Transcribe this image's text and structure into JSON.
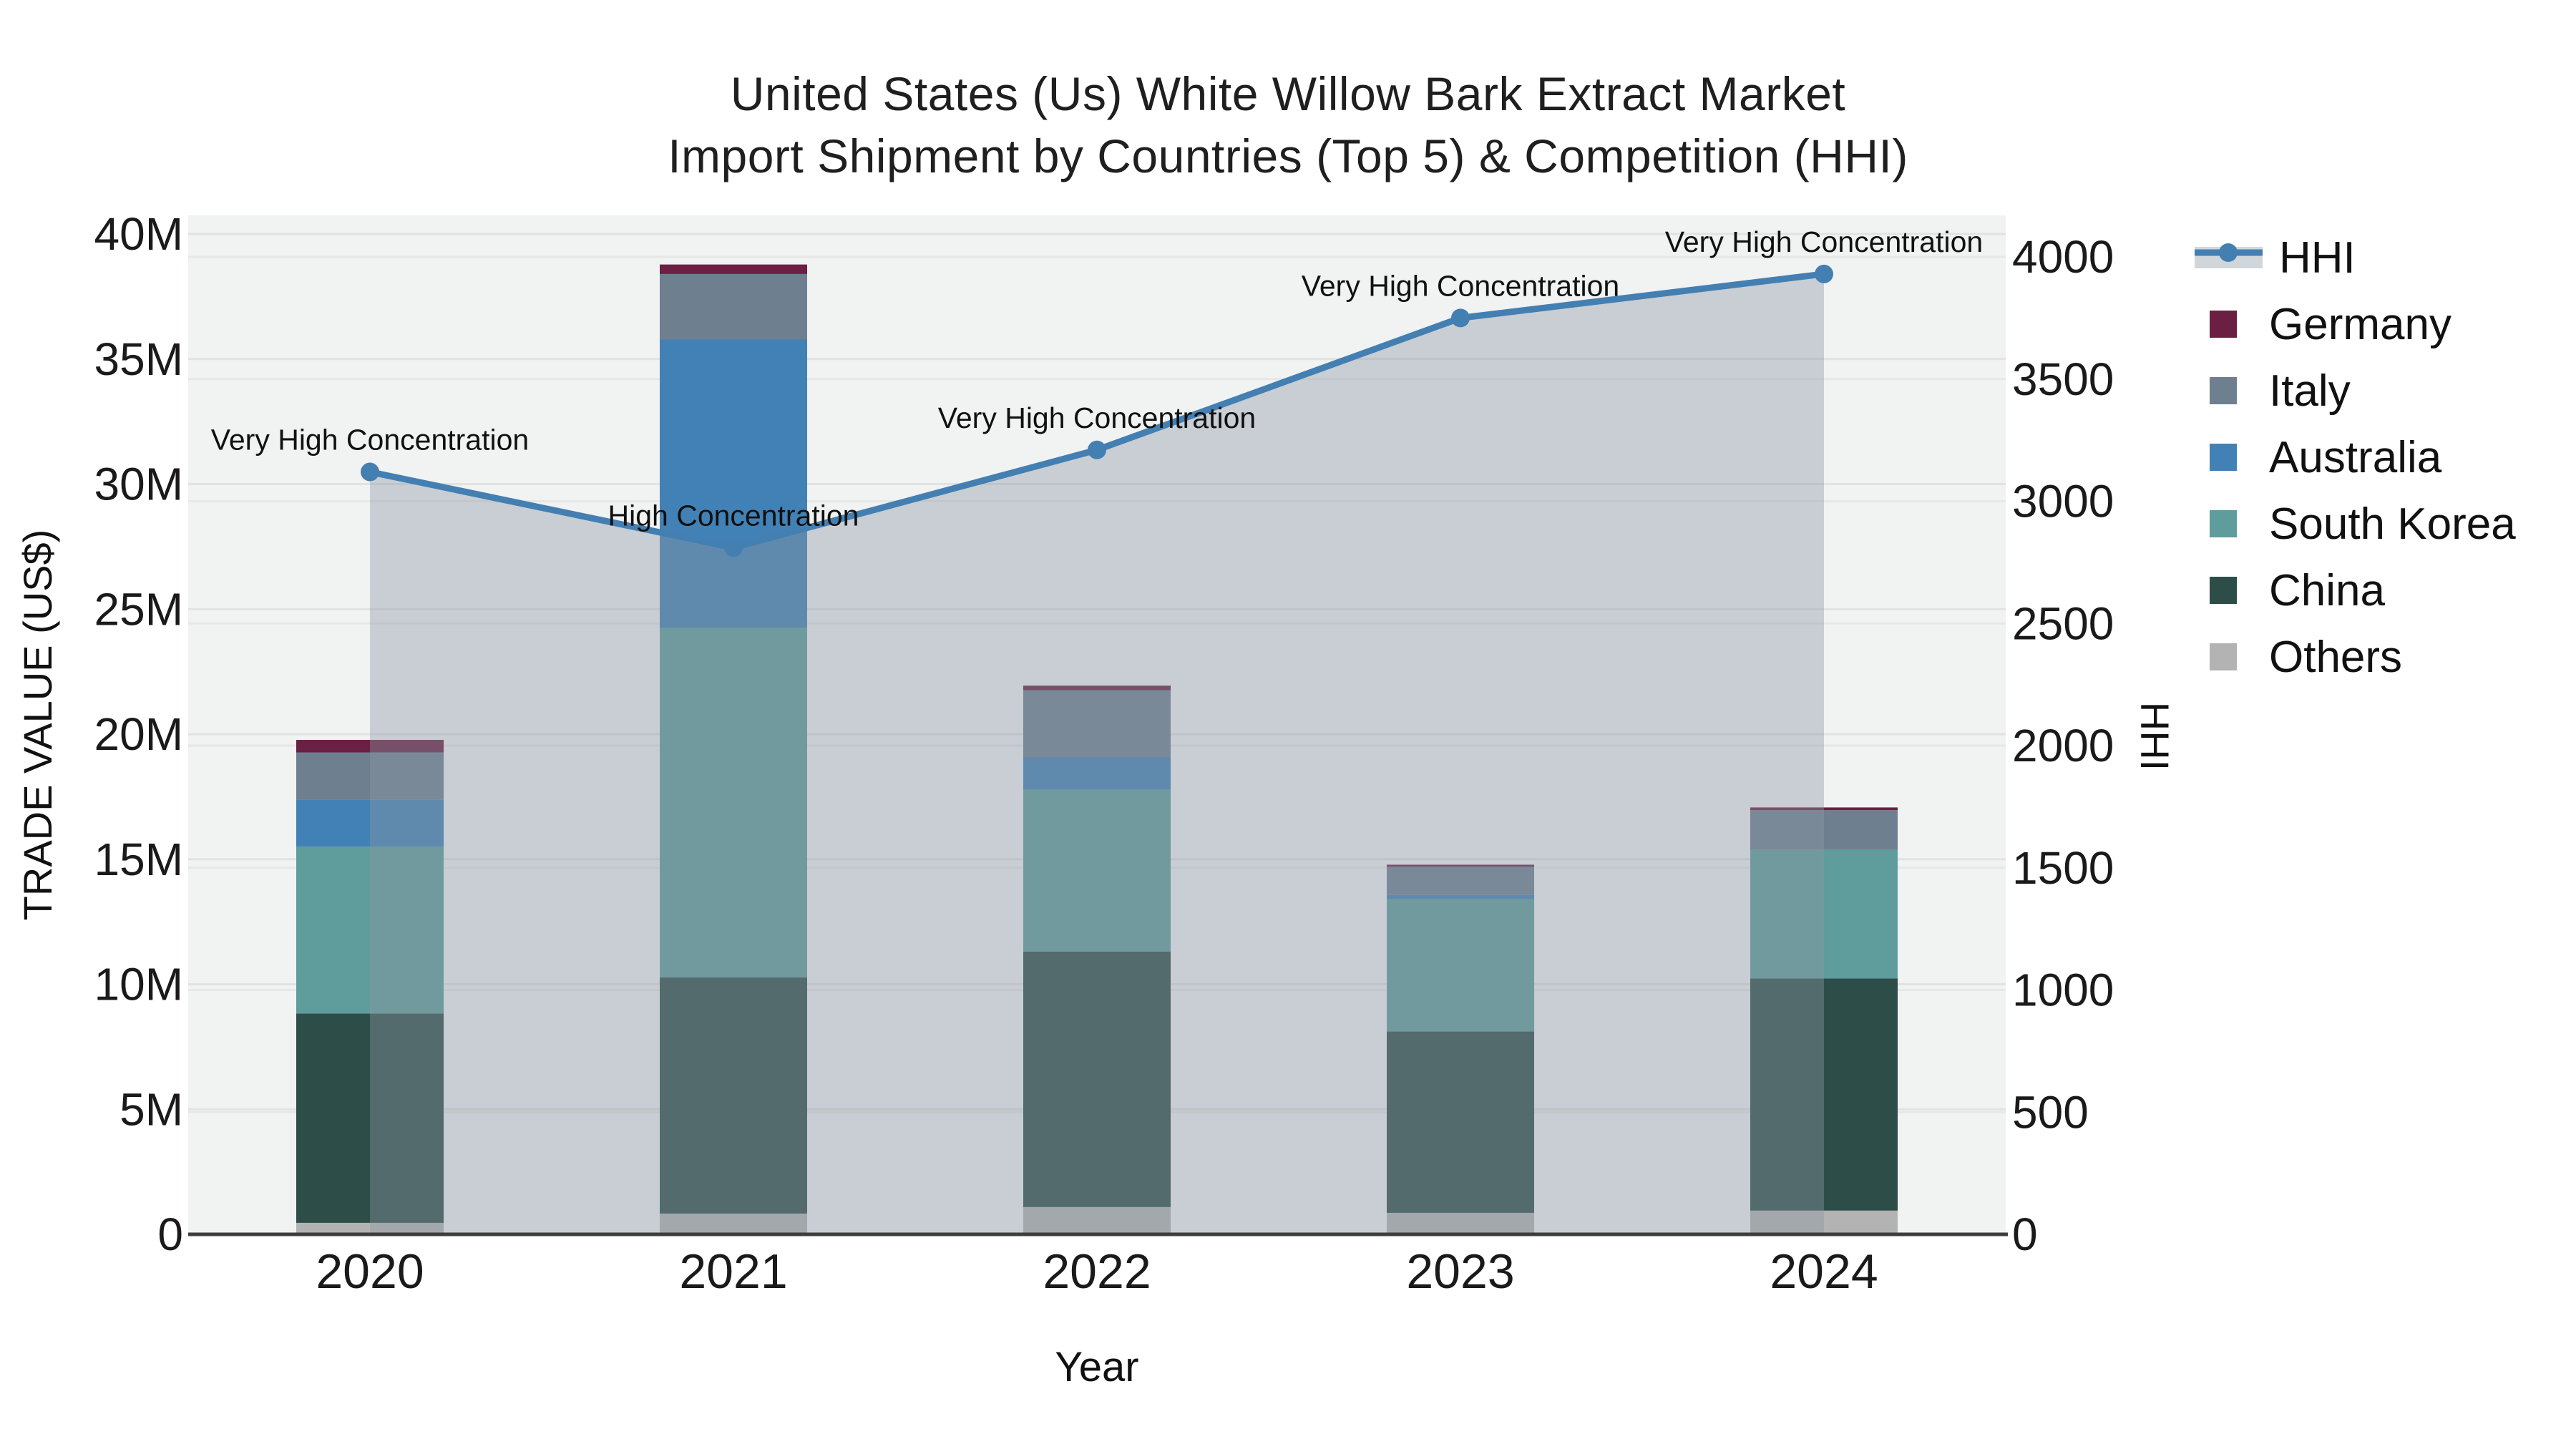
{
  "title": {
    "line1": "United States (Us) White Willow Bark Extract Market",
    "line2": "Import Shipment by Countries (Top 5) & Competition (HHI)"
  },
  "chart_data": {
    "type": "bar+line",
    "title": "United States (Us) White Willow Bark Extract Market",
    "subtitle": "Import Shipment by Countries (Top 5) & Competition (HHI)",
    "xlabel": "Year",
    "ylabel_left": "TRADE VALUE (US$)",
    "ylabel_right": "HHI",
    "categories": [
      "2020",
      "2021",
      "2022",
      "2023",
      "2024"
    ],
    "value_unit": "million US$",
    "ylim_left_millions": [
      0,
      40
    ],
    "ylim_right": [
      0,
      4000
    ],
    "y_left_ticks": [
      "0",
      "5M",
      "10M",
      "15M",
      "20M",
      "25M",
      "30M",
      "35M",
      "40M"
    ],
    "y_left_tick_values_millions": [
      0,
      5,
      10,
      15,
      20,
      25,
      30,
      35,
      40
    ],
    "y_right_ticks": [
      "0",
      "500",
      "1000",
      "1500",
      "2000",
      "2500",
      "3000",
      "3500",
      "4000"
    ],
    "y_right_tick_values": [
      0,
      500,
      1000,
      1500,
      2000,
      2500,
      3000,
      3500,
      4000
    ],
    "series": [
      {
        "name": "Others",
        "color": "#b3b3b3",
        "values_millions": [
          0.46,
          0.83,
          1.09,
          0.86,
          0.95
        ]
      },
      {
        "name": "China",
        "color": "#2d4d49",
        "values_millions": [
          8.37,
          9.44,
          10.22,
          7.25,
          9.28
        ]
      },
      {
        "name": "South Korea",
        "color": "#5f9c9c",
        "values_millions": [
          6.67,
          13.98,
          6.47,
          5.29,
          5.14
        ]
      },
      {
        "name": "Australia",
        "color": "#4281b5",
        "values_millions": [
          1.87,
          11.53,
          1.29,
          0.17,
          0.0
        ]
      },
      {
        "name": "Italy",
        "color": "#6e7f8f",
        "values_millions": [
          1.9,
          2.62,
          2.69,
          1.13,
          1.59
        ]
      },
      {
        "name": "Germany",
        "color": "#6b1f42",
        "values_millions": [
          0.5,
          0.38,
          0.18,
          0.08,
          0.11
        ]
      }
    ],
    "line_series": {
      "name": "HHI",
      "color": "#447fb2",
      "area_fill_color": "rgba(140,152,164,0.40)",
      "values": [
        3120,
        2810,
        3210,
        3750,
        3930
      ]
    },
    "annotations": [
      "Very High Concentration",
      "High Concentration",
      "Very High Concentration",
      "Very High Concentration",
      "Very High Concentration"
    ],
    "legend": [
      {
        "label": "HHI",
        "color": "#447fb2",
        "type": "line"
      },
      {
        "label": "Germany",
        "color": "#6b1f42",
        "type": "box"
      },
      {
        "label": "Italy",
        "color": "#6e7f8f",
        "type": "box"
      },
      {
        "label": "Australia",
        "color": "#4281b5",
        "type": "box"
      },
      {
        "label": "South Korea",
        "color": "#5f9c9c",
        "type": "box"
      },
      {
        "label": "China",
        "color": "#2d4d49",
        "type": "box"
      },
      {
        "label": "Others",
        "color": "#b3b3b3",
        "type": "box"
      }
    ],
    "grid": true,
    "legend_position": "right"
  }
}
